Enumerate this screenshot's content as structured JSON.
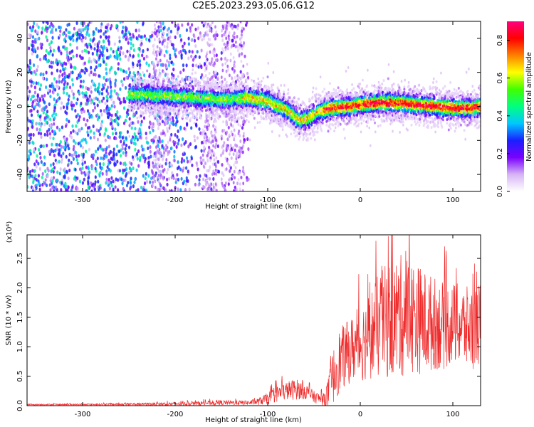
{
  "title": "C2E5.2023.293.05.06.G12",
  "chart_data": [
    {
      "type": "heatmap",
      "xlabel": "Height of straight line (km)",
      "ylabel": "Frequency (Hz)",
      "xlim": [
        -360,
        130
      ],
      "ylim": [
        -50,
        50
      ],
      "xticks": [
        -300,
        -200,
        -100,
        0,
        100
      ],
      "yticks": [
        -40,
        -20,
        0,
        20,
        40
      ],
      "colorbar": {
        "label": "Normalized spectral amplitude",
        "ticks": [
          "0.0",
          "0.2",
          "0.4",
          "0.6",
          "0.8"
        ],
        "range": [
          0,
          0.9
        ],
        "colormap": "rainbow",
        "stops": [
          "#ffffff",
          "#d7b4f5",
          "#7a00ff",
          "#1a20ff",
          "#00c8ff",
          "#00ff80",
          "#40ff00",
          "#ffff00",
          "#ff8000",
          "#ff0000",
          "#ff0080"
        ]
      },
      "ridge": {
        "x": [
          -250,
          -200,
          -150,
          -120,
          -100,
          -80,
          -65,
          -55,
          -45,
          -30,
          -10,
          0,
          20,
          40,
          60,
          80,
          100,
          120,
          130
        ],
        "y": [
          7,
          6,
          4,
          5,
          3,
          -2,
          -8,
          -7,
          -3,
          -1,
          0,
          1,
          2,
          2,
          1,
          0,
          -1,
          -1,
          0
        ]
      }
    },
    {
      "type": "line",
      "xlabel": "Height of straight line (km)",
      "ylabel": "SNR (10 * v/v)",
      "scale_label": "(x10⁴)",
      "xlim": [
        -360,
        130
      ],
      "ylim": [
        0,
        2.9
      ],
      "xticks": [
        -300,
        -200,
        -100,
        0,
        100
      ],
      "yticks": [
        "0.0",
        "0.5",
        "1.0",
        "1.5",
        "2.0",
        "2.5"
      ],
      "series": [
        {
          "color": "#ee2a2a",
          "envelope": {
            "x": [
              -360,
              -300,
              -200,
              -150,
              -120,
              -110,
              -100,
              -90,
              -80,
              -70,
              -60,
              -50,
              -40,
              -35,
              -30,
              -25,
              -20,
              -10,
              0,
              10,
              20,
              30,
              40,
              50,
              60,
              70,
              80,
              90,
              100,
              110,
              120,
              130
            ],
            "mean": [
              0.02,
              0.02,
              0.03,
              0.05,
              0.05,
              0.07,
              0.12,
              0.2,
              0.25,
              0.28,
              0.25,
              0.15,
              0.1,
              0.2,
              0.45,
              0.7,
              0.8,
              0.95,
              1.05,
              1.2,
              1.35,
              1.45,
              1.5,
              1.55,
              1.5,
              1.4,
              1.4,
              1.35,
              1.4,
              1.35,
              1.3,
              1.4
            ],
            "amp": [
              0.01,
              0.01,
              0.03,
              0.04,
              0.04,
              0.06,
              0.1,
              0.14,
              0.16,
              0.18,
              0.14,
              0.1,
              0.1,
              0.25,
              0.45,
              0.55,
              0.55,
              0.55,
              0.65,
              0.75,
              0.9,
              1.0,
              1.05,
              1.05,
              0.95,
              0.9,
              0.8,
              0.75,
              0.7,
              0.7,
              0.7,
              0.7
            ]
          }
        }
      ]
    }
  ]
}
